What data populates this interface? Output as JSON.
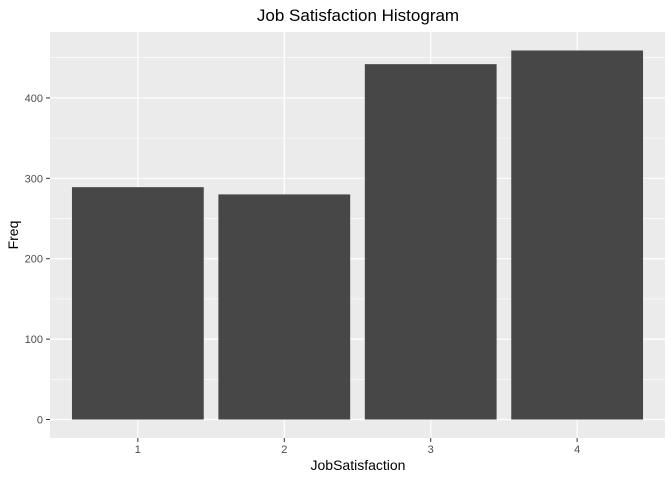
{
  "chart_data": {
    "type": "bar",
    "title": "Job Satisfaction  Histogram",
    "xlabel": "JobSatisfaction",
    "ylabel": "Freq",
    "categories": [
      "1",
      "2",
      "3",
      "4"
    ],
    "values": [
      289,
      280,
      442,
      459
    ],
    "ylim": [
      -23,
      482
    ],
    "yticks": [
      0,
      100,
      200,
      300,
      400
    ],
    "grid": true,
    "legend": "none",
    "colors": {
      "panel": "#ebebeb",
      "gridline": "#ffffff",
      "bar": "#474747",
      "tick_mark": "#333333",
      "tick_text": "#4d4d4d",
      "text": "#000000"
    }
  }
}
